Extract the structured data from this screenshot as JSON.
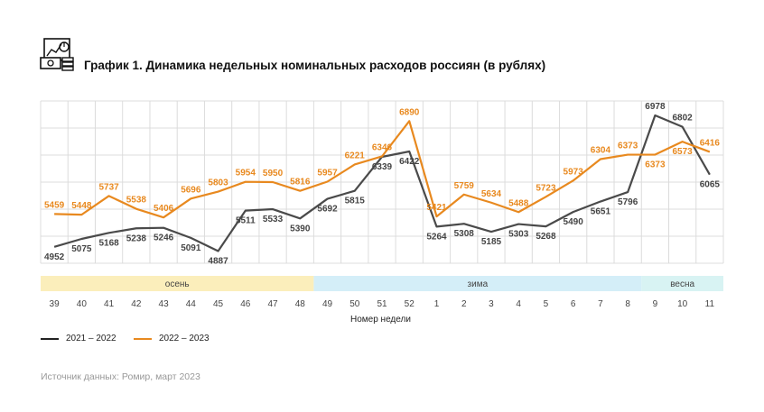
{
  "title": "График 1. Динамика недельных номинальных расходов россиян (в рублях)",
  "source": "Источник данных: Ромир, март 2023",
  "chart_data": {
    "type": "line",
    "title": "График 1. Динамика недельных номинальных расходов россиян (в рублях)",
    "xlabel": "Номер недели",
    "ylabel": "",
    "categories": [
      "39",
      "40",
      "41",
      "42",
      "43",
      "44",
      "45",
      "46",
      "47",
      "48",
      "49",
      "50",
      "51",
      "52",
      "1",
      "2",
      "3",
      "4",
      "5",
      "6",
      "7",
      "8",
      "9",
      "10",
      "11"
    ],
    "ylim": [
      4700,
      7200
    ],
    "grid": true,
    "legend_position": "bottom-left",
    "series": [
      {
        "name": "2021 – 2022",
        "color": "#4a4a4a",
        "values": [
          4952,
          5075,
          5168,
          5238,
          5246,
          5091,
          4887,
          5511,
          5533,
          5390,
          5692,
          5815,
          6339,
          6422,
          5264,
          5308,
          5185,
          5303,
          5268,
          5490,
          5651,
          5796,
          6978,
          6802,
          6065
        ]
      },
      {
        "name": "2022 – 2023",
        "color": "#e8891f",
        "values": [
          5459,
          5448,
          5737,
          5538,
          5406,
          5696,
          5803,
          5954,
          5950,
          5816,
          5957,
          6221,
          6346,
          6890,
          5421,
          5759,
          5634,
          5488,
          5723,
          5973,
          6304,
          6373,
          6373,
          6573,
          6416
        ]
      }
    ],
    "seasons": [
      {
        "label": "осень",
        "from": "39",
        "to": "48",
        "color": "#fbeebb"
      },
      {
        "label": "зима",
        "from": "49",
        "to": "8",
        "color": "#d4eef8"
      },
      {
        "label": "весна",
        "from": "9",
        "to": "11",
        "color": "#d8f3f3"
      }
    ]
  }
}
